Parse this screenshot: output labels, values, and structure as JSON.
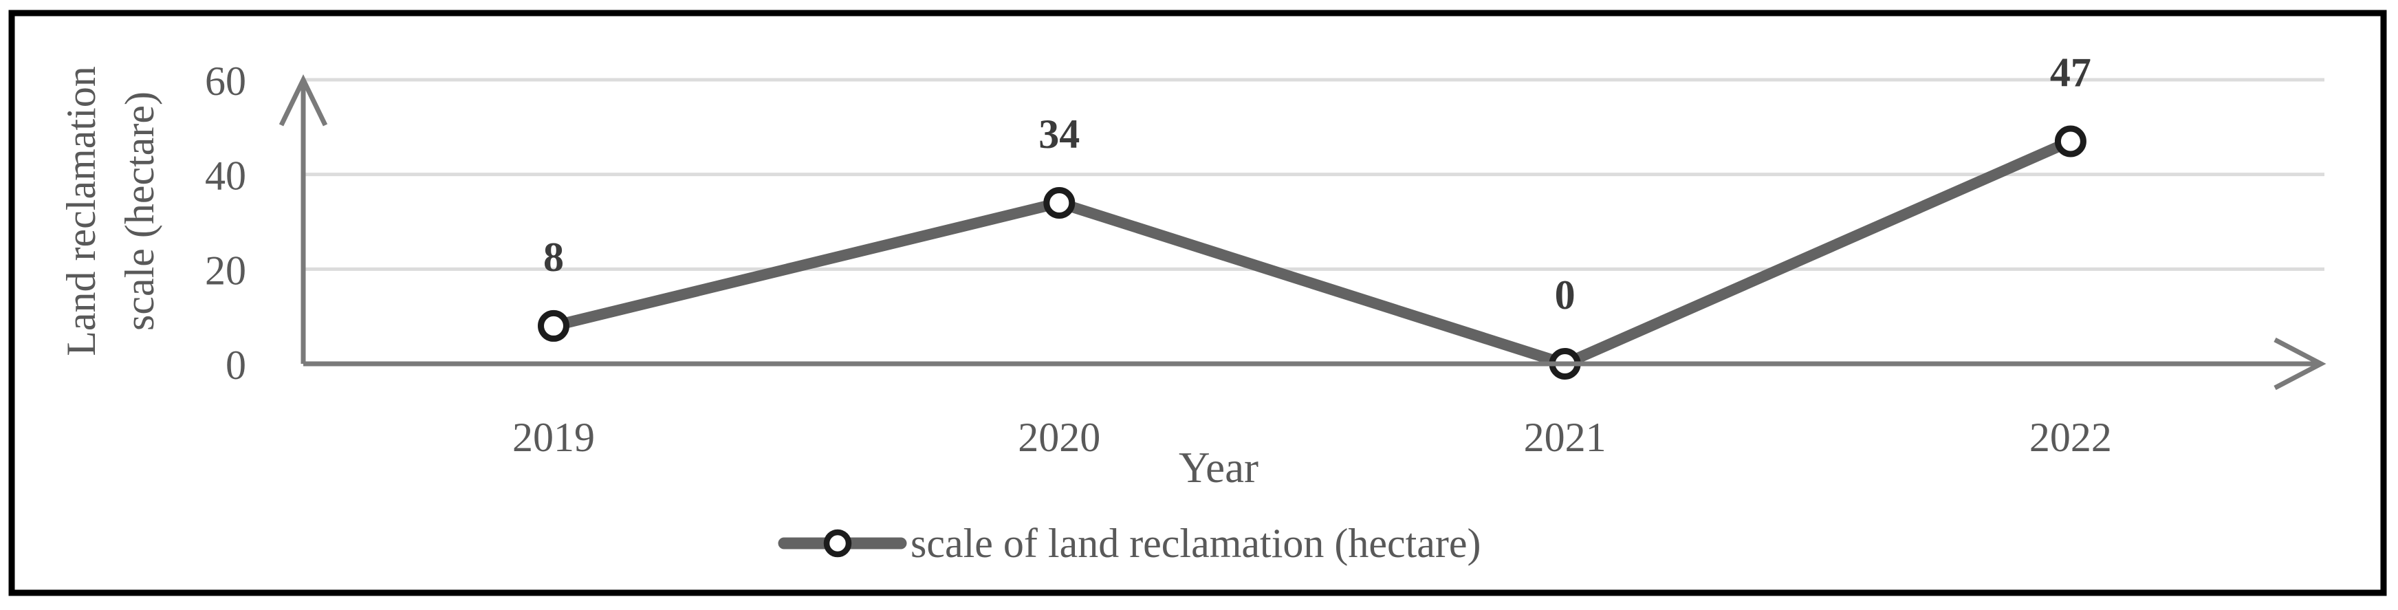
{
  "figure": {
    "background": "#ffffff",
    "border_color": "#000000"
  },
  "chart_data": {
    "type": "line",
    "categories": [
      "2019",
      "2020",
      "2021",
      "2022"
    ],
    "series": [
      {
        "name": "scale of land reclamation (hectare)",
        "values": [
          8,
          34,
          0,
          47
        ]
      }
    ],
    "data_labels": [
      "8",
      "34",
      "0",
      "47"
    ],
    "xlabel": "Year",
    "ylabel_line1": "Land reclamation",
    "ylabel_line2": "scale (hectare)",
    "y_ticks": [
      0,
      20,
      40,
      60
    ],
    "ylim": [
      0,
      60
    ],
    "grid": "horizontal-only",
    "legend_position": "bottom-center",
    "legend_label": "scale of land reclamation (hectare)",
    "colors": {
      "line": "#636363",
      "marker_ring": "#1c1c1c",
      "marker_fill": "#ffffff",
      "gridline": "#dcdcdc",
      "axis": "#7a7a7a",
      "tick_text": "#595959",
      "data_label_text": "#3b3b3b",
      "frame_border": "#000000"
    }
  }
}
